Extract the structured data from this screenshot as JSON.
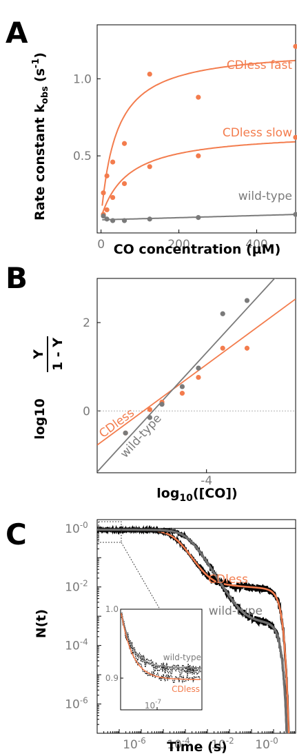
{
  "panels": {
    "A": {
      "letter": "A",
      "ylabel": "Rate constant k",
      "ylabel_sub": "obs",
      "ylabel_unit": "(s",
      "ylabel_sup": "-1",
      "ylabel_close": ")",
      "xlabel": "CO concentration  (µM)"
    },
    "B": {
      "letter": "B",
      "ylabel_prefix": "log10",
      "ylabel_num": "Y",
      "ylabel_den": "1 - Y",
      "xlabel_main": "log",
      "xlabel_sub": "10",
      "xlabel_rest": "([CO])"
    },
    "C": {
      "letter": "C",
      "ylabel": "N(t)",
      "xlabel": "Time (s)"
    }
  },
  "chart_data": [
    {
      "panel": "A",
      "type": "scatter",
      "xlabel": "CO concentration  (µM)",
      "ylabel": "Rate constant kobs (s-1)",
      "xlim": [
        -10,
        500
      ],
      "ylim": [
        0,
        1.35
      ],
      "xticks": [
        0,
        200,
        400
      ],
      "xtick_labels": [
        "0",
        "200",
        "400"
      ],
      "yticks": [
        0.5,
        1.0
      ],
      "ytick_labels": [
        "0.5",
        "1.0"
      ],
      "series": [
        {
          "name": "CDless fast",
          "color": "#f37c4d",
          "points": [
            [
              6,
              0.26
            ],
            [
              15,
              0.37
            ],
            [
              30,
              0.46
            ],
            [
              60,
              0.58
            ],
            [
              125,
              1.03
            ],
            [
              250,
              0.88
            ],
            [
              500,
              1.21
            ]
          ],
          "fit": {
            "form": "hyperbolic",
            "offset": 0.1,
            "amplitude": 1.1,
            "k": 40
          }
        },
        {
          "name": "CDless slow",
          "color": "#f37c4d",
          "points": [
            [
              6,
              0.12
            ],
            [
              15,
              0.15
            ],
            [
              30,
              0.23
            ],
            [
              60,
              0.32
            ],
            [
              125,
              0.43
            ],
            [
              250,
              0.5
            ],
            [
              500,
              0.62
            ]
          ],
          "fit": {
            "form": "hyperbolic",
            "offset": 0.1,
            "amplitude": 0.56,
            "k": 70
          }
        },
        {
          "name": "wild-type",
          "color": "#7a7a7a",
          "points": [
            [
              6,
              0.11
            ],
            [
              15,
              0.09
            ],
            [
              30,
              0.08
            ],
            [
              60,
              0.08
            ],
            [
              125,
              0.09
            ],
            [
              250,
              0.1
            ],
            [
              500,
              0.12
            ]
          ],
          "fit": {
            "form": "linear",
            "intercept": 0.085,
            "slope": 7e-05
          }
        }
      ]
    },
    {
      "panel": "B",
      "type": "scatter",
      "xlabel": "log10([CO])",
      "ylabel": "log10 (Y / (1 - Y))",
      "xlim": [
        -5.35,
        -2.9
      ],
      "ylim": [
        -1.4,
        3.0
      ],
      "xticks": [
        -4
      ],
      "xtick_labels": [
        "-4"
      ],
      "yticks": [
        0,
        2
      ],
      "ytick_labels": [
        "0",
        "2"
      ],
      "zero_line": true,
      "series": [
        {
          "name": "CDless",
          "color": "#f37c4d",
          "points": [
            [
              -5.0,
              -0.5
            ],
            [
              -4.7,
              0.03
            ],
            [
              -4.55,
              0.2
            ],
            [
              -4.3,
              0.4
            ],
            [
              -4.1,
              0.76
            ],
            [
              -3.8,
              1.42
            ],
            [
              -3.5,
              1.42
            ]
          ],
          "fit": {
            "slope": 1.35,
            "intercept": 6.45
          }
        },
        {
          "name": "wild-type",
          "color": "#7a7a7a",
          "points": [
            [
              -5.0,
              -0.5
            ],
            [
              -4.7,
              -0.15
            ],
            [
              -4.55,
              0.15
            ],
            [
              -4.3,
              0.55
            ],
            [
              -4.1,
              0.97
            ],
            [
              -3.8,
              2.2
            ],
            [
              -3.5,
              2.5
            ]
          ],
          "fit": {
            "slope": 2.0,
            "intercept": 9.32
          }
        }
      ]
    },
    {
      "panel": "C",
      "type": "line",
      "xscale": "log",
      "yscale": "log",
      "xlabel": "Time (s)",
      "ylabel": "N(t)",
      "xlim": [
        1e-08,
        10
      ],
      "ylim": [
        1e-07,
        2
      ],
      "xtick_labels": [
        "10-6",
        "10-4",
        "10-2",
        "10-0"
      ],
      "ytick_labels": [
        "10-0",
        "10-2",
        "10-4",
        "10-6"
      ],
      "series": [
        {
          "name": "CDless",
          "color": "#f37c4d",
          "plateau1": 0.88,
          "step1_time": 3.5e-05,
          "plateau2": 0.011,
          "step2_time": 1.6,
          "plateau_after_level": 0.008
        },
        {
          "name": "wild-type",
          "color": "#7a7a7a",
          "plateau1": 0.9,
          "step1_time": 0.00013,
          "plateau2": 0.00075,
          "step2_time": 1.5,
          "plateau_after_level": 0.00055
        }
      ],
      "inset": {
        "xtick_label": "10-7",
        "ytick_labels": [
          "1.0",
          "0.9"
        ],
        "series_names": [
          "wild-type",
          "CDless"
        ],
        "wild_type_level": 0.915,
        "cdless_level": 0.898
      }
    }
  ],
  "colors": {
    "cdless": "#f37c4d",
    "wild_type": "#7a7a7a",
    "data": "#000000",
    "axis": "#000000"
  }
}
